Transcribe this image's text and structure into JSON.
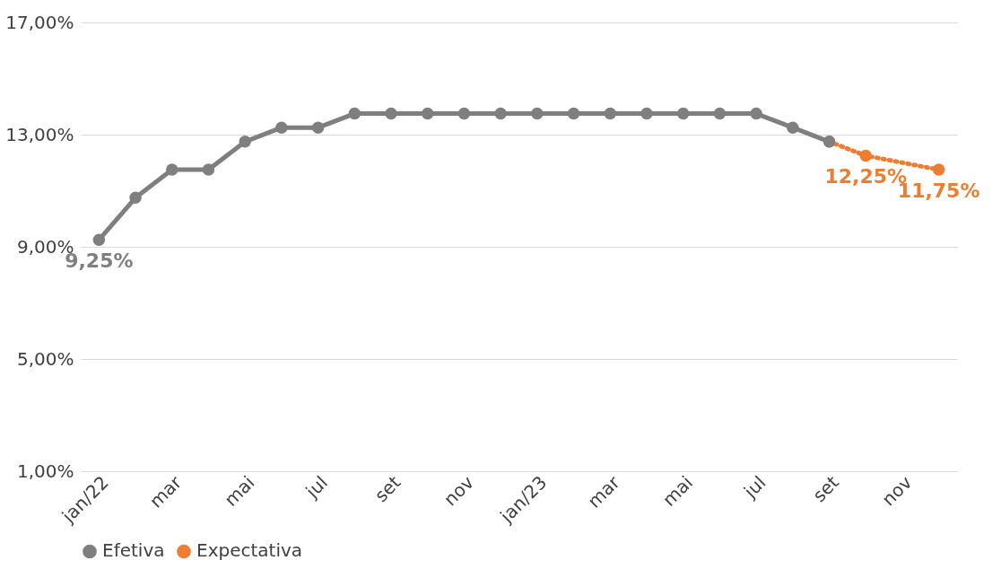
{
  "chart_data": {
    "type": "line",
    "categories": [
      "jan/22",
      null,
      "mar",
      null,
      "mai",
      null,
      "jul",
      null,
      "set",
      null,
      "nov",
      null,
      "jan/23",
      null,
      "mar",
      null,
      "mai",
      null,
      "jul",
      null,
      "set",
      null,
      "nov",
      null
    ],
    "series": [
      {
        "name": "Efetiva",
        "color": "#7f7f7f",
        "line_style": "solid",
        "values": [
          9.25,
          10.75,
          11.75,
          11.75,
          12.75,
          13.25,
          13.25,
          13.75,
          13.75,
          13.75,
          13.75,
          13.75,
          13.75,
          13.75,
          13.75,
          13.75,
          13.75,
          13.75,
          13.75,
          13.25,
          12.75,
          null,
          null,
          null
        ],
        "value_labels": [
          "9,25%",
          null,
          null,
          null,
          null,
          null,
          null,
          null,
          null,
          null,
          null,
          null,
          null,
          null,
          null,
          null,
          null,
          null,
          null,
          null,
          null,
          null,
          null,
          null
        ]
      },
      {
        "name": "Expectativa",
        "color": "#ed7d31",
        "line_style": "dotted",
        "values": [
          null,
          null,
          null,
          null,
          null,
          null,
          null,
          null,
          null,
          null,
          null,
          null,
          null,
          null,
          null,
          null,
          null,
          null,
          null,
          null,
          12.75,
          12.25,
          null,
          11.75
        ],
        "value_labels": [
          null,
          null,
          null,
          null,
          null,
          null,
          null,
          null,
          null,
          null,
          null,
          null,
          null,
          null,
          null,
          null,
          null,
          null,
          null,
          null,
          null,
          "12,25%",
          null,
          "11,75%"
        ]
      }
    ],
    "ylim": [
      1,
      17
    ],
    "yticks": [
      {
        "value": 1,
        "label": "1,00%"
      },
      {
        "value": 5,
        "label": "5,00%"
      },
      {
        "value": 9,
        "label": "9,00%"
      },
      {
        "value": 13,
        "label": "13,00%"
      },
      {
        "value": 17,
        "label": "17,00%"
      }
    ],
    "grid": "y",
    "legend": "bottom",
    "marker": "circle"
  }
}
